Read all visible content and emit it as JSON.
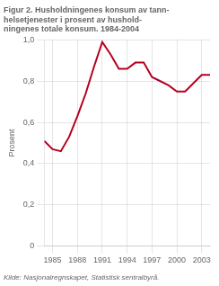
{
  "chart_data": {
    "type": "line",
    "title": [
      "Figur 2. Husholdningenes konsum av tann-",
      "helsetjenester i prosent av hushold-",
      "ningenes totale konsum. 1984-2004"
    ],
    "y_label": "Prosent",
    "annotations": [
      "Kilde: Nasjonalregnskapet, Statistisk sentralbyrå."
    ],
    "x": [
      1984,
      1985,
      1986,
      1987,
      1988,
      1989,
      1990,
      1991,
      1992,
      1993,
      1994,
      1995,
      1996,
      1997,
      1998,
      1999,
      2000,
      2001,
      2002,
      2003,
      2004
    ],
    "values": [
      0.51,
      0.47,
      0.46,
      0.53,
      0.63,
      0.74,
      0.87,
      0.99,
      0.93,
      0.86,
      0.86,
      0.89,
      0.89,
      0.82,
      0.8,
      0.78,
      0.75,
      0.75,
      0.79,
      0.83,
      0.83
    ],
    "color": "#b5001f",
    "xlim": [
      1984,
      2004
    ],
    "xticks": [
      1985,
      1988,
      1991,
      1994,
      1997,
      2000,
      2003
    ],
    "ylim": [
      0,
      1.0
    ],
    "yticks": [
      0,
      {
        "value": 0.2,
        "label": "0,2"
      },
      {
        "value": 0.4,
        "label": "0,4"
      },
      {
        "value": 0.6,
        "label": "0,6"
      },
      {
        "value": 0.8,
        "label": "0,8"
      },
      {
        "value": 1.0,
        "label": "1,0"
      }
    ],
    "grid": true
  }
}
